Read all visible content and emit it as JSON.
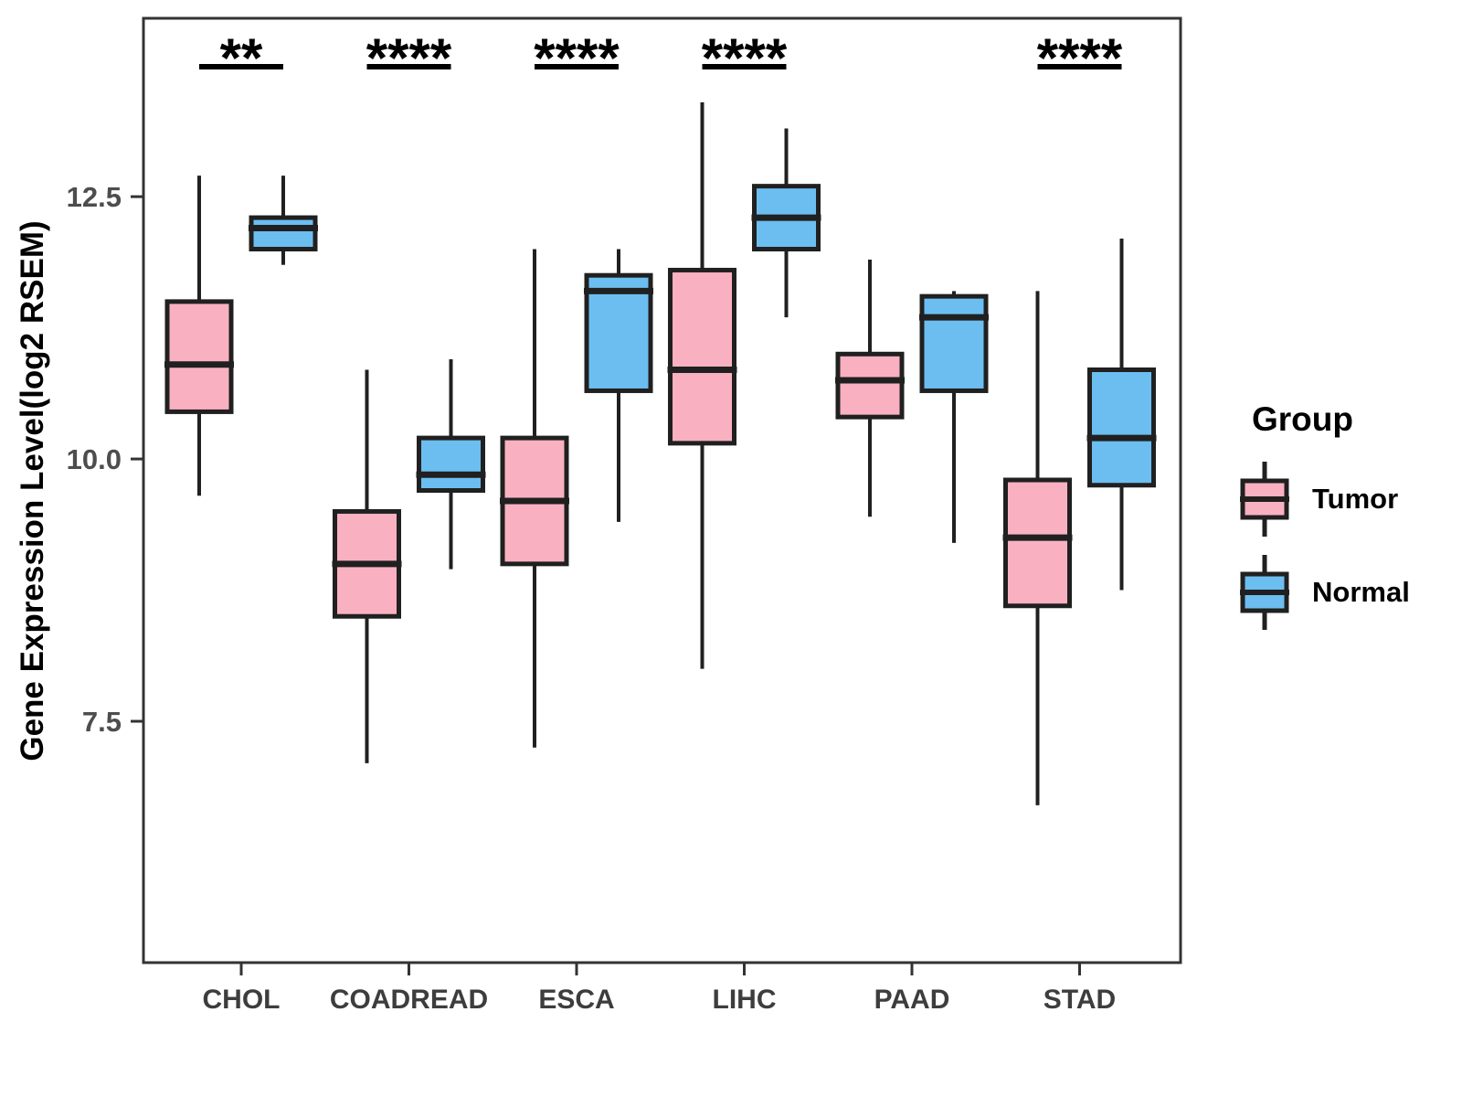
{
  "chart_data": {
    "type": "boxplot",
    "title": "",
    "xlabel": "",
    "ylabel": "Gene Expression Level(log2 RSEM)",
    "ylim": [
      5.2,
      14.2
    ],
    "grid": false,
    "yticks": [
      {
        "value": 12.5,
        "label": "12.5"
      },
      {
        "value": 10.0,
        "label": "10.0"
      },
      {
        "value": 7.5,
        "label": "7.5"
      }
    ],
    "categories": [
      "CHOL",
      "COADREAD",
      "ESCA",
      "LIHC",
      "PAAD",
      "STAD"
    ],
    "series": [
      {
        "name": "Tumor",
        "color": "#F9B1C1",
        "boxes": [
          {
            "min": 9.65,
            "q1": 10.45,
            "median": 10.9,
            "q3": 11.5,
            "max": 12.7
          },
          {
            "min": 7.1,
            "q1": 8.5,
            "median": 9.0,
            "q3": 9.5,
            "max": 10.85
          },
          {
            "min": 7.25,
            "q1": 9.0,
            "median": 9.6,
            "q3": 10.2,
            "max": 12.0
          },
          {
            "min": 8.0,
            "q1": 10.15,
            "median": 10.85,
            "q3": 11.8,
            "max": 13.4
          },
          {
            "min": 9.45,
            "q1": 10.4,
            "median": 10.75,
            "q3": 11.0,
            "max": 11.9
          },
          {
            "min": 6.7,
            "q1": 8.6,
            "median": 9.25,
            "q3": 9.8,
            "max": 11.6
          }
        ]
      },
      {
        "name": "Normal",
        "color": "#6CBEF1",
        "boxes": [
          {
            "min": 11.85,
            "q1": 12.0,
            "median": 12.2,
            "q3": 12.3,
            "max": 12.7
          },
          {
            "min": 8.95,
            "q1": 9.7,
            "median": 9.85,
            "q3": 10.2,
            "max": 10.95
          },
          {
            "min": 9.4,
            "q1": 10.65,
            "median": 11.6,
            "q3": 11.75,
            "max": 12.0
          },
          {
            "min": 11.35,
            "q1": 12.0,
            "median": 12.3,
            "q3": 12.6,
            "max": 13.15
          },
          {
            "min": 9.2,
            "q1": 10.65,
            "median": 11.35,
            "q3": 11.55,
            "max": 11.6
          },
          {
            "min": 8.75,
            "q1": 9.75,
            "median": 10.2,
            "q3": 10.85,
            "max": 12.1
          }
        ]
      }
    ],
    "significance": [
      "**",
      "****",
      "****",
      "****",
      null,
      "****"
    ],
    "legend": {
      "title": "Group",
      "position": "right",
      "items": [
        "Tumor",
        "Normal"
      ]
    },
    "colors": {
      "tumor": "#F9B1C1",
      "normal": "#6CBEF1",
      "box_stroke": "#202020",
      "panel_border": "#333333",
      "tick": "#333333",
      "tick_label": "#4D4D4D",
      "axis_title": "#000000",
      "significance": "#000000"
    }
  }
}
